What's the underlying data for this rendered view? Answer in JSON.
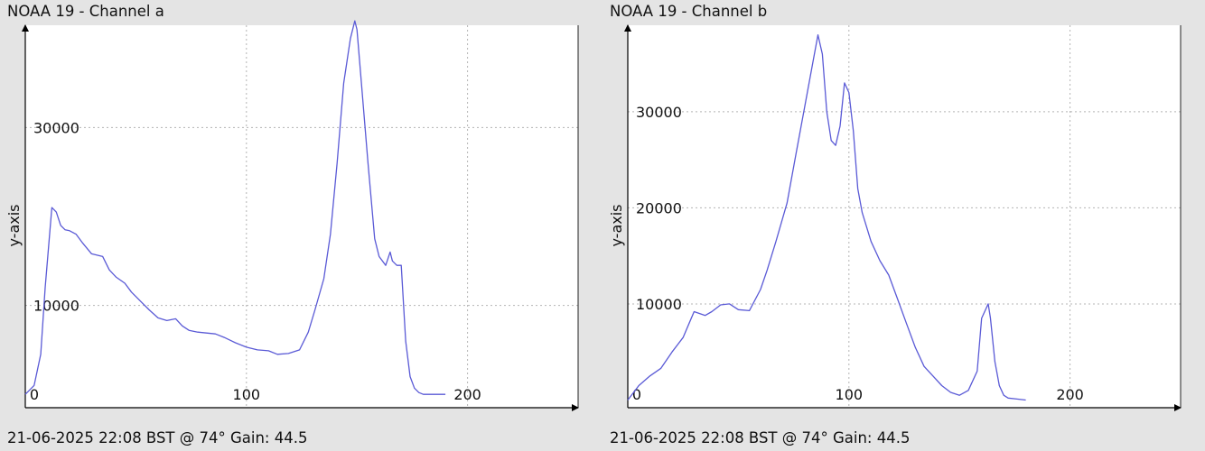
{
  "chart_data": [
    {
      "type": "line",
      "title": "NOAA 19 - Channel a",
      "footer": "21-06-2025 22:08 BST @ 74° Gain: 44.5",
      "ylabel": "y-axis",
      "xlabel": "",
      "xlim": [
        0,
        250
      ],
      "ylim": [
        -1500,
        41500
      ],
      "grid": true,
      "x_ticks": [
        0,
        100,
        200
      ],
      "y_ticks": [
        10000,
        30000
      ],
      "x_tick_labels": [
        "0",
        "100",
        "200"
      ],
      "y_tick_labels": [
        "10000",
        "30000"
      ],
      "color": "#5a5ad6",
      "series": [
        {
          "x": [
            0,
            4,
            7,
            9,
            12,
            14,
            16,
            18,
            20,
            23,
            26,
            30,
            35,
            38,
            41,
            45,
            48,
            52,
            56,
            60,
            64,
            68,
            71,
            74,
            78,
            82,
            86,
            90,
            95,
            100,
            105,
            110,
            114,
            119,
            124,
            128,
            131,
            135,
            138,
            141,
            144,
            147,
            149,
            150,
            152,
            155,
            158,
            160,
            163,
            165,
            166,
            168,
            170,
            172,
            174,
            176,
            178,
            180,
            185,
            190
          ],
          "y": [
            0,
            1000,
            4500,
            12000,
            21000,
            20500,
            19000,
            18500,
            18400,
            18000,
            17000,
            15800,
            15500,
            14000,
            13200,
            12500,
            11500,
            10500,
            9500,
            8600,
            8300,
            8500,
            7700,
            7200,
            7000,
            6900,
            6800,
            6400,
            5800,
            5300,
            5000,
            4900,
            4500,
            4600,
            5000,
            7000,
            9500,
            13000,
            18000,
            26000,
            35000,
            40000,
            42000,
            41000,
            35000,
            26000,
            17500,
            15500,
            14500,
            16000,
            15000,
            14500,
            14500,
            6000,
            2000,
            700,
            200,
            0,
            0,
            0
          ]
        }
      ]
    },
    {
      "type": "line",
      "title": "NOAA 19 - Channel b",
      "footer": "21-06-2025 22:08 BST @ 74° Gain: 44.5",
      "ylabel": "y-axis",
      "xlabel": "",
      "xlim": [
        0,
        250
      ],
      "ylim": [
        -800,
        39000
      ],
      "grid": true,
      "x_ticks": [
        0,
        100,
        200
      ],
      "y_ticks": [
        10000,
        20000,
        30000
      ],
      "x_tick_labels": [
        "0",
        "100",
        "200"
      ],
      "y_tick_labels": [
        "10000",
        "20000",
        "30000"
      ],
      "color": "#5a5ad6",
      "series": [
        {
          "x": [
            0,
            5,
            10,
            15,
            20,
            25,
            30,
            35,
            38,
            42,
            46,
            50,
            55,
            60,
            63,
            67,
            72,
            76,
            80,
            84,
            86,
            88,
            90,
            92,
            94,
            96,
            98,
            100,
            102,
            104,
            106,
            108,
            110,
            114,
            118,
            122,
            126,
            130,
            134,
            138,
            142,
            146,
            150,
            154,
            158,
            160,
            163,
            164,
            166,
            168,
            170,
            172,
            176,
            180
          ],
          "y": [
            0,
            1500,
            2500,
            3300,
            5000,
            6500,
            9200,
            8800,
            9200,
            9900,
            10000,
            9400,
            9300,
            11500,
            13500,
            16500,
            20500,
            25500,
            30500,
            35500,
            38000,
            36000,
            30000,
            27000,
            26500,
            28500,
            33000,
            32000,
            28000,
            22000,
            19500,
            18000,
            16500,
            14500,
            13000,
            10500,
            8000,
            5500,
            3500,
            2500,
            1500,
            800,
            500,
            1000,
            3000,
            8500,
            10000,
            8500,
            4000,
            1500,
            500,
            200,
            100,
            0
          ]
        }
      ]
    }
  ]
}
